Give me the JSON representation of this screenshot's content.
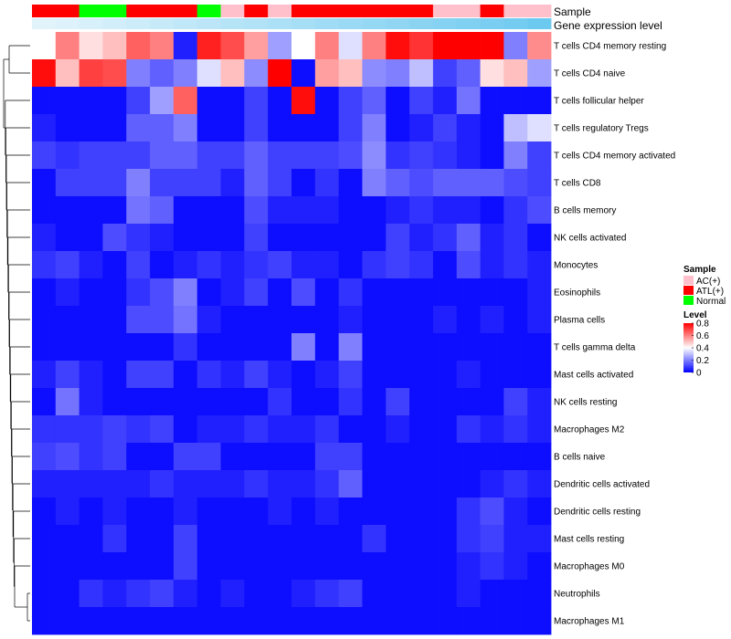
{
  "chart_data": {
    "type": "heatmap",
    "annotations": {
      "sample_label": "Sample",
      "gene_label": "Gene expression level",
      "sample_groups": [
        "ATL(+)",
        "ATL(+)",
        "Normal",
        "Normal",
        "ATL(+)",
        "ATL(+)",
        "ATL(+)",
        "Normal",
        "AC(+)",
        "ATL(+)",
        "AC(+)",
        "ATL(+)",
        "ATL(+)",
        "ATL(+)",
        "ATL(+)",
        "ATL(+)",
        "ATL(+)",
        "AC(+)",
        "AC(+)",
        "ATL(+)",
        "AC(+)",
        "AC(+)"
      ],
      "gene_expression_shades": [
        0.05,
        0.08,
        0.12,
        0.16,
        0.2,
        0.24,
        0.28,
        0.32,
        0.36,
        0.4,
        0.44,
        0.48,
        0.52,
        0.56,
        0.6,
        0.64,
        0.68,
        0.72,
        0.76,
        0.8,
        0.84,
        0.9
      ]
    },
    "rows": [
      "T cells CD4 memory resting",
      "T cells CD4 naive",
      "T cells follicular helper",
      "T cells regulatory  Tregs",
      "T cells CD4 memory activated",
      "T cells CD8",
      "B cells memory",
      "NK cells activated",
      "Monocytes",
      "Eosinophils",
      "Plasma cells",
      "T cells gamma delta",
      "Mast cells activated",
      "NK cells resting",
      "Macrophages M2",
      "B cells naive",
      "Dendritic cells activated",
      "Dendritic cells resting",
      "Mast cells resting",
      "Macrophages M0",
      "Neutrophils",
      "Macrophages M1"
    ],
    "values": [
      [
        0.4,
        0.6,
        0.45,
        0.5,
        0.65,
        0.6,
        0.05,
        0.75,
        0.68,
        0.55,
        0.25,
        0.4,
        0.6,
        0.35,
        0.6,
        0.78,
        0.72,
        0.8,
        0.8,
        0.8,
        0.2,
        0.58
      ],
      [
        0.78,
        0.5,
        0.7,
        0.68,
        0.2,
        0.15,
        0.2,
        0.35,
        0.5,
        0.22,
        0.8,
        0.02,
        0.55,
        0.5,
        0.22,
        0.2,
        0.3,
        0.1,
        0.15,
        0.45,
        0.5,
        0.25
      ],
      [
        0.02,
        0.02,
        0.02,
        0.02,
        0.1,
        0.25,
        0.65,
        0.02,
        0.02,
        0.1,
        0.02,
        0.78,
        0.02,
        0.1,
        0.15,
        0.02,
        0.1,
        0.05,
        0.18,
        0.02,
        0.02,
        0.02
      ],
      [
        0.05,
        0.02,
        0.02,
        0.02,
        0.15,
        0.15,
        0.2,
        0.02,
        0.02,
        0.1,
        0.02,
        0.02,
        0.02,
        0.1,
        0.2,
        0.02,
        0.05,
        0.1,
        0.05,
        0.02,
        0.3,
        0.35
      ],
      [
        0.1,
        0.08,
        0.1,
        0.1,
        0.1,
        0.15,
        0.15,
        0.1,
        0.1,
        0.15,
        0.1,
        0.1,
        0.1,
        0.12,
        0.22,
        0.08,
        0.1,
        0.08,
        0.05,
        0.02,
        0.2,
        0.1
      ],
      [
        0.02,
        0.1,
        0.1,
        0.1,
        0.2,
        0.1,
        0.1,
        0.1,
        0.05,
        0.15,
        0.1,
        0.02,
        0.08,
        0.02,
        0.2,
        0.15,
        0.12,
        0.15,
        0.15,
        0.15,
        0.12,
        0.1
      ],
      [
        0.02,
        0.02,
        0.02,
        0.02,
        0.18,
        0.15,
        0.02,
        0.02,
        0.02,
        0.12,
        0.05,
        0.05,
        0.05,
        0.02,
        0.02,
        0.05,
        0.08,
        0.05,
        0.05,
        0.02,
        0.08,
        0.12
      ],
      [
        0.05,
        0.02,
        0.02,
        0.12,
        0.08,
        0.05,
        0.02,
        0.02,
        0.02,
        0.1,
        0.02,
        0.02,
        0.02,
        0.02,
        0.02,
        0.1,
        0.05,
        0.08,
        0.15,
        0.05,
        0.08,
        0.02
      ],
      [
        0.08,
        0.1,
        0.05,
        0.02,
        0.1,
        0.02,
        0.05,
        0.08,
        0.05,
        0.08,
        0.1,
        0.05,
        0.05,
        0.02,
        0.08,
        0.1,
        0.08,
        0.02,
        0.12,
        0.05,
        0.08,
        0.05
      ],
      [
        0.02,
        0.05,
        0.02,
        0.02,
        0.08,
        0.12,
        0.2,
        0.02,
        0.05,
        0.1,
        0.02,
        0.12,
        0.02,
        0.08,
        0.02,
        0.02,
        0.02,
        0.02,
        0.02,
        0.02,
        0.02,
        0.05
      ],
      [
        0.02,
        0.02,
        0.02,
        0.02,
        0.12,
        0.12,
        0.18,
        0.05,
        0.02,
        0.02,
        0.02,
        0.02,
        0.02,
        0.05,
        0.02,
        0.02,
        0.02,
        0.05,
        0.02,
        0.05,
        0.02,
        0.05
      ],
      [
        0.02,
        0.02,
        0.02,
        0.02,
        0.02,
        0.02,
        0.08,
        0.02,
        0.02,
        0.02,
        0.02,
        0.2,
        0.02,
        0.2,
        0.02,
        0.02,
        0.02,
        0.02,
        0.02,
        0.02,
        0.02,
        0.02
      ],
      [
        0.05,
        0.1,
        0.05,
        0.02,
        0.1,
        0.1,
        0.02,
        0.08,
        0.05,
        0.1,
        0.05,
        0.02,
        0.05,
        0.1,
        0.02,
        0.02,
        0.02,
        0.02,
        0.05,
        0.02,
        0.02,
        0.02
      ],
      [
        0.02,
        0.18,
        0.05,
        0.02,
        0.02,
        0.02,
        0.02,
        0.02,
        0.02,
        0.02,
        0.08,
        0.02,
        0.02,
        0.08,
        0.02,
        0.1,
        0.02,
        0.02,
        0.02,
        0.02,
        0.1,
        0.05
      ],
      [
        0.08,
        0.08,
        0.08,
        0.1,
        0.08,
        0.1,
        0.02,
        0.05,
        0.05,
        0.08,
        0.05,
        0.05,
        0.08,
        0.02,
        0.02,
        0.05,
        0.02,
        0.02,
        0.08,
        0.05,
        0.08,
        0.05
      ],
      [
        0.1,
        0.12,
        0.08,
        0.1,
        0.02,
        0.02,
        0.1,
        0.1,
        0.02,
        0.02,
        0.02,
        0.02,
        0.1,
        0.1,
        0.02,
        0.02,
        0.02,
        0.02,
        0.02,
        0.02,
        0.02,
        0.02
      ],
      [
        0.05,
        0.05,
        0.05,
        0.05,
        0.05,
        0.08,
        0.05,
        0.05,
        0.05,
        0.08,
        0.05,
        0.05,
        0.08,
        0.15,
        0.02,
        0.02,
        0.02,
        0.02,
        0.02,
        0.05,
        0.08,
        0.05
      ],
      [
        0.02,
        0.05,
        0.02,
        0.05,
        0.02,
        0.02,
        0.05,
        0.02,
        0.02,
        0.02,
        0.05,
        0.02,
        0.05,
        0.02,
        0.02,
        0.02,
        0.02,
        0.02,
        0.08,
        0.12,
        0.05,
        0.02
      ],
      [
        0.02,
        0.02,
        0.02,
        0.08,
        0.02,
        0.02,
        0.1,
        0.02,
        0.02,
        0.02,
        0.02,
        0.02,
        0.02,
        0.02,
        0.08,
        0.02,
        0.02,
        0.02,
        0.08,
        0.1,
        0.05,
        0.05
      ],
      [
        0.02,
        0.02,
        0.02,
        0.02,
        0.02,
        0.02,
        0.1,
        0.02,
        0.02,
        0.02,
        0.02,
        0.02,
        0.02,
        0.02,
        0.02,
        0.02,
        0.02,
        0.02,
        0.05,
        0.08,
        0.05,
        0.02
      ],
      [
        0.02,
        0.02,
        0.08,
        0.05,
        0.08,
        0.1,
        0.05,
        0.02,
        0.05,
        0.02,
        0.02,
        0.05,
        0.08,
        0.1,
        0.02,
        0.02,
        0.02,
        0.02,
        0.05,
        0.02,
        0.02,
        0.02
      ],
      [
        0.02,
        0.02,
        0.02,
        0.02,
        0.02,
        0.02,
        0.02,
        0.02,
        0.02,
        0.02,
        0.02,
        0.02,
        0.02,
        0.02,
        0.02,
        0.02,
        0.02,
        0.02,
        0.02,
        0.02,
        0.02,
        0.02
      ]
    ],
    "legend": {
      "sample_title": "Sample",
      "sample_entries": [
        {
          "label": "AC(+)",
          "color": "#ffc0cb"
        },
        {
          "label": "ATL(+)",
          "color": "#ff0000"
        },
        {
          "label": "Normal",
          "color": "#00ff00"
        }
      ],
      "level_title": "Level",
      "level_ticks": [
        "0.8",
        "0.6",
        "0.4",
        "0.2",
        "0"
      ],
      "level_range": [
        0,
        0.8
      ]
    },
    "colors": {
      "low": "#0000ff",
      "mid": "#ffffff",
      "high": "#ff0000",
      "gene_light": "#e8f6fc",
      "gene_dark": "#5ec4ee"
    }
  }
}
